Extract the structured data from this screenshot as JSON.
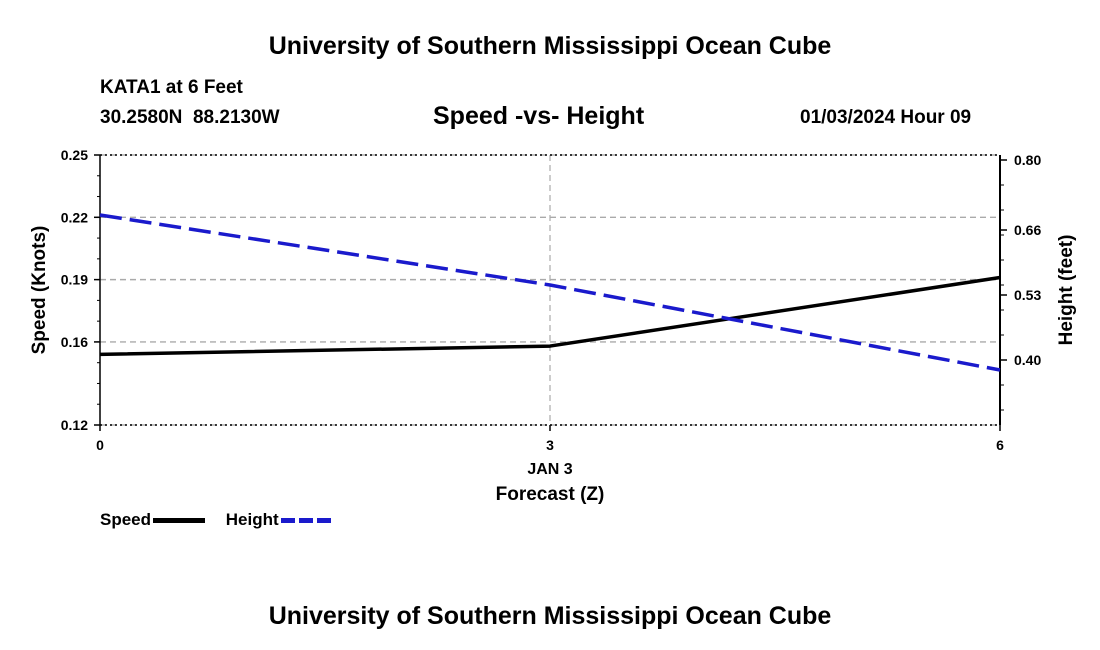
{
  "header": {
    "title": "University of Southern Mississippi Ocean Cube",
    "station": "KATA1 at 6 Feet",
    "lat": "30.2580N",
    "lon": "88.2130W",
    "subtitle": "Speed -vs- Height",
    "datetime": "01/03/2024 Hour 09"
  },
  "footer": {
    "title": "University of Southern Mississippi Ocean Cube"
  },
  "chart_data": {
    "type": "line",
    "title": "Speed -vs- Height",
    "xlabel": "Forecast (Z)",
    "x_sublabel": "JAN 3",
    "x": [
      0,
      3,
      6
    ],
    "xlim": [
      0,
      6
    ],
    "x_ticks": [
      "0",
      "3",
      "6"
    ],
    "y_left": {
      "label": "Speed (Knots)",
      "lim": [
        0.12,
        0.25
      ],
      "ticks": [
        "0.25",
        "0.22",
        "0.19",
        "0.16",
        "0.12"
      ],
      "tick_values": [
        0.25,
        0.22,
        0.19,
        0.16,
        0.12
      ]
    },
    "y_right": {
      "label": "Height (feet)",
      "lim": [
        0.27,
        0.81
      ],
      "ticks": [
        "0.80",
        "0.66",
        "0.53",
        "0.40"
      ],
      "tick_values": [
        0.8,
        0.66,
        0.53,
        0.4
      ]
    },
    "series": [
      {
        "name": "Speed",
        "axis": "left",
        "color": "#000000",
        "style": "solid",
        "values": [
          0.154,
          0.158,
          0.191
        ]
      },
      {
        "name": "Height",
        "axis": "right",
        "color": "#1a1acc",
        "style": "dashed",
        "values": [
          0.69,
          0.55,
          0.38
        ]
      }
    ],
    "grid": true,
    "legend_position": "bottom-left"
  }
}
